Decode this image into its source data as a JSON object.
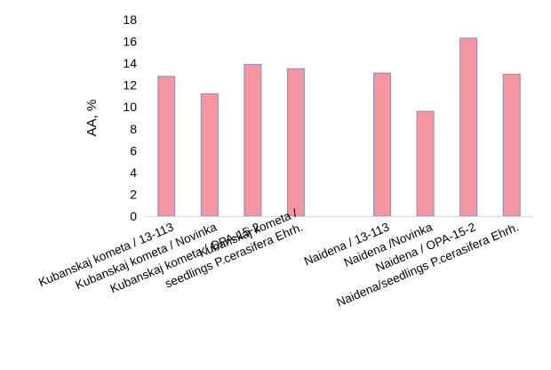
{
  "chart_data": {
    "type": "bar",
    "ylabel": "AA, %",
    "xlabel": "",
    "ylim": [
      0,
      18
    ],
    "yticks": [
      0,
      2,
      4,
      6,
      8,
      10,
      12,
      14,
      16,
      18
    ],
    "grid": false,
    "bar_color": "#F4959F",
    "bar_edge_color": "#7E8FC8",
    "categories": [
      [
        "Kubanskaj kometa / 13-113"
      ],
      [
        "Kubanskaj kometa / Novinka"
      ],
      [
        "Kubanskaj kometa / OPA-15-2"
      ],
      [
        "Kubanskaj kometa /",
        "seedlings P.cerasifera Ehrh."
      ],
      [],
      [
        "Naidena / 13-113"
      ],
      [
        "Naidena /Novinka"
      ],
      [
        "Naidena / OPA-15-2"
      ],
      [
        "Naidena/seedlings P.cerasifera Ehrh."
      ]
    ],
    "values": [
      12.8,
      11.2,
      13.9,
      13.5,
      null,
      13.1,
      9.6,
      16.3,
      13.0
    ]
  }
}
